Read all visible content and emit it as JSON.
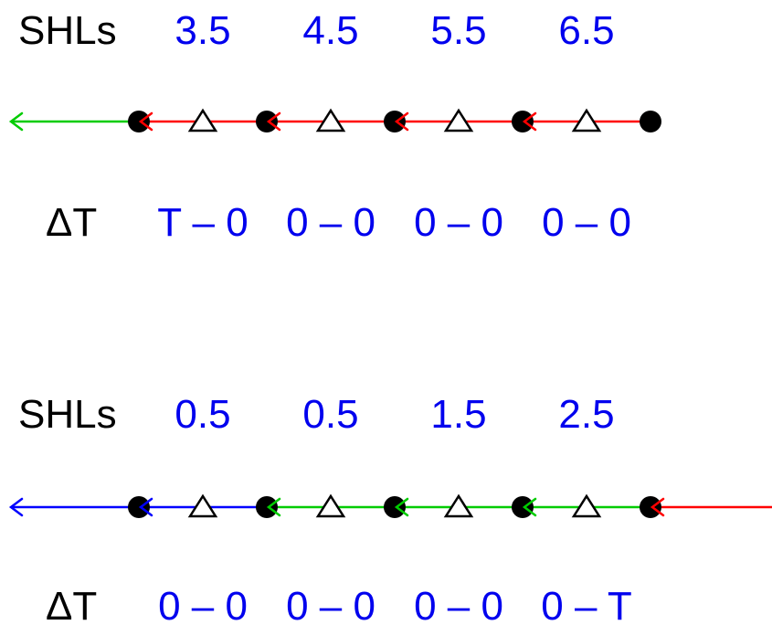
{
  "colors": {
    "text": "#000000",
    "values": "#0000ee",
    "red": "#ff0000",
    "green": "#00cc00",
    "blue": "#0000ff",
    "node": "#000000"
  },
  "panels": [
    {
      "shl_label": "SHLs",
      "shl_values": [
        "3.5",
        "4.5",
        "5.5",
        "6.5"
      ],
      "dt_label": "ΔT",
      "dt_values": [
        "T – 0",
        "0 – 0",
        "0 – 0",
        "0 – 0"
      ],
      "segments": [
        {
          "color": "green",
          "extends": "left"
        },
        {
          "color": "red"
        },
        {
          "color": "red"
        },
        {
          "color": "red"
        },
        {
          "color": "red"
        }
      ]
    },
    {
      "shl_label": "SHLs",
      "shl_values": [
        "0.5",
        "0.5",
        "1.5",
        "2.5"
      ],
      "dt_label": "ΔT",
      "dt_values": [
        "0 – 0",
        "0 – 0",
        "0 – 0",
        "0 – T"
      ],
      "segments": [
        {
          "color": "blue",
          "extends": "left"
        },
        {
          "color": "blue"
        },
        {
          "color": "green"
        },
        {
          "color": "green"
        },
        {
          "color": "green"
        },
        {
          "color": "red",
          "extends": "right"
        }
      ]
    }
  ]
}
